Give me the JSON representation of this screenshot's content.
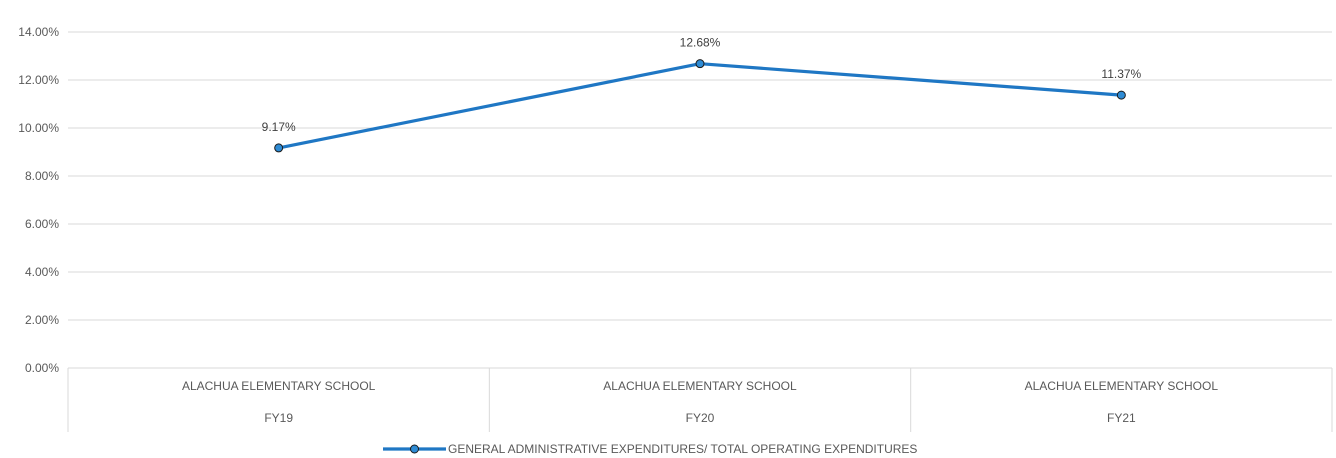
{
  "chart_data": {
    "type": "line",
    "title": "",
    "xlabel": "",
    "ylabel": "",
    "ylim": [
      0,
      0.14
    ],
    "y_tick_step": 0.02,
    "y_ticks": [
      "0.00%",
      "2.00%",
      "4.00%",
      "6.00%",
      "8.00%",
      "10.00%",
      "12.00%",
      "14.00%"
    ],
    "grid": true,
    "legend_position": "bottom",
    "categories": [
      {
        "group": "ALACHUA ELEMENTARY SCHOOL",
        "label": "FY19"
      },
      {
        "group": "ALACHUA ELEMENTARY SCHOOL",
        "label": "FY20"
      },
      {
        "group": "ALACHUA ELEMENTARY SCHOOL",
        "label": "FY21"
      }
    ],
    "series": [
      {
        "name": "GENERAL ADMINISTRATIVE EXPENDITURES/ TOTAL OPERATING EXPENDITURES",
        "values": [
          0.0917,
          0.1268,
          0.1137
        ],
        "data_labels": [
          "9.17%",
          "12.68%",
          "11.37%"
        ],
        "color": "#1F77C4",
        "marker_color": "#2E8BD4"
      }
    ]
  }
}
